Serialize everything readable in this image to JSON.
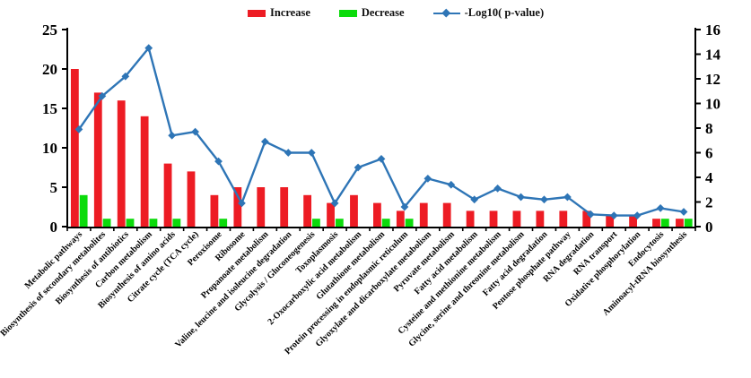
{
  "legend": {
    "increase_label": "Increase",
    "decrease_label": "Decrease",
    "line_label": "-Log10( p-value)"
  },
  "colors": {
    "increase": "#ED1C24",
    "decrease": "#0BDB0B",
    "line": "#2E75B6",
    "axis": "#000000"
  },
  "chart_data": {
    "type": "bar",
    "subtype": "grouped bars with secondary-axis line (KEGG pathway enrichment)",
    "title": "",
    "xlabel": "",
    "ylabel_left": "",
    "ylabel_right": "",
    "grid": false,
    "legend_position": "top",
    "categories": [
      "Metabolic pathways",
      "Biosynthesis of secondary metabolites",
      "Biosynthesis of antibiotics",
      "Carbon metabolism",
      "Biosynthesis of amino acids",
      "Citrate cycle (TCA cycle)",
      "Peroxisome",
      "Ribosome",
      "Propanoate metabolism",
      "Valine, leucine and isoleucine degradation",
      "Glycolysis / Gluconeogenesis",
      "Toxoplasmosis",
      "2-Oxocarboxylic acid metabolism",
      "Glutathione metabolism",
      "Protein processing in endoplasmic reticulum",
      "Glyoxylate and dicarboxylate metabolism",
      "Pyruvate metabolism",
      "Fatty acid metabolism",
      "Cysteine and methionine metabolism",
      "Glycine, serine and threonine metabolism",
      "Fatty acid degradation",
      "Pentose phosphate pathway",
      "RNA degradation",
      "RNA transport",
      "Oxidative phosphorylation",
      "Endocytosis",
      "Aminoacyl-tRNA biosynthesis"
    ],
    "series": [
      {
        "name": "Increase",
        "type": "bar",
        "axis": "left",
        "color": "#ED1C24",
        "values": [
          20,
          17,
          16,
          14,
          8,
          7,
          4,
          5,
          5,
          5,
          4,
          3,
          4,
          3,
          2,
          3,
          3,
          2,
          2,
          2,
          2,
          2,
          2,
          1.5,
          1.5,
          1,
          1
        ]
      },
      {
        "name": "Decrease",
        "type": "bar",
        "axis": "left",
        "color": "#0BDB0B",
        "values": [
          4,
          1,
          1,
          1,
          1,
          0,
          1,
          0,
          0,
          0,
          1,
          1,
          0,
          1,
          1,
          0,
          0,
          0,
          0,
          0,
          0,
          0,
          0,
          0,
          0,
          1,
          1
        ]
      },
      {
        "name": "-Log10( p-value)",
        "type": "line",
        "axis": "right",
        "color": "#2E75B6",
        "marker": "diamond",
        "values": [
          7.9,
          10.6,
          12.2,
          14.5,
          7.4,
          7.7,
          5.3,
          1.9,
          6.9,
          6.0,
          6.0,
          1.9,
          4.8,
          5.5,
          1.6,
          3.9,
          3.4,
          2.2,
          3.1,
          2.4,
          2.2,
          2.4,
          1.0,
          0.9,
          0.9,
          1.5,
          1.2
        ]
      }
    ],
    "left_axis": {
      "range": [
        0,
        25
      ],
      "ticks": [
        0,
        5,
        10,
        15,
        20,
        25
      ]
    },
    "right_axis": {
      "range": [
        0,
        16
      ],
      "ticks": [
        0,
        2,
        4,
        6,
        8,
        10,
        12,
        14,
        16
      ]
    }
  }
}
